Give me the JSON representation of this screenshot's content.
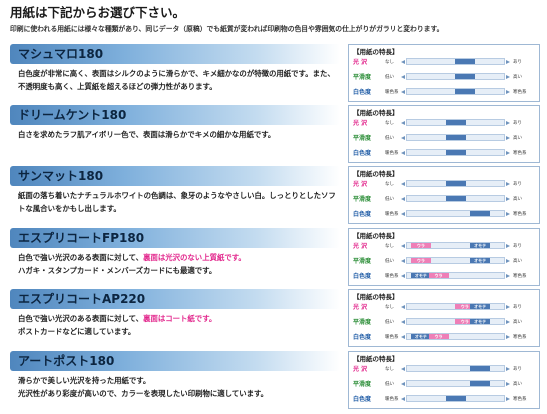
{
  "header": {
    "title": "用紙は下記からお選び下さい。",
    "subtitle": "印刷に使われる用紙には様々な種類があり、同じデータ（原稿）でも紙質が変われば印刷物の色目や雰囲気の仕上がりがガラリと変わります。"
  },
  "card_title": "【用紙の特長】",
  "row_labels": {
    "gloss": "光 沢",
    "smooth": "平滑度",
    "white": "白色度",
    "gloss_lo": "なし",
    "gloss_hi": "あり",
    "smooth_lo": "低い",
    "smooth_hi": "高い",
    "white_lo": "暖色系",
    "white_hi": "寒色系"
  },
  "colors": {
    "gloss": "#e2268c",
    "smooth": "#2e8f3a",
    "white": "#2560a8",
    "fill_blue": "#4a78b3",
    "fill_pink": "#ee7fb7"
  },
  "papers": [
    {
      "name": "マシュマロ180",
      "desc": [
        {
          "t": "白色度が非常に高く、表面はシルクのように滑らかで、キメ細かなのが特徴の用紙です。また、不透明度も高く、上質紙を超えるほどの弾力性があります。"
        }
      ],
      "gloss": {
        "pos": 0.62,
        "label": ""
      },
      "smooth": {
        "pos": 0.62,
        "label": ""
      },
      "white": {
        "pos": 0.62,
        "label": ""
      }
    },
    {
      "name": "ドリームケント180",
      "desc": [
        {
          "t": "白さを求めたラフ肌アイボリー色で、表面は滑らかでキメの細かな用紙です。"
        }
      ],
      "gloss": {
        "pos": 0.5,
        "label": ""
      },
      "smooth": {
        "pos": 0.5,
        "label": ""
      },
      "white": {
        "pos": 0.5,
        "label": ""
      }
    },
    {
      "name": "サンマット180",
      "desc": [
        {
          "t": "紙面の落ち着いたナチュラルホワイトの色調は、象牙のようなやさしい白。しっとりとしたソフトな風合いをかもし出します。"
        }
      ],
      "gloss": {
        "pos": 0.5,
        "label": ""
      },
      "smooth": {
        "pos": 0.5,
        "label": ""
      },
      "white": {
        "pos": 0.82,
        "label": ""
      }
    },
    {
      "name": "エスプリコートFP180",
      "desc": [
        {
          "t": "白色で強い光沢のある表面に対して、"
        },
        {
          "t": "裏面は光沢のない上質紙です。",
          "hl": true
        },
        {
          "t": "\nハガキ・スタンプカード・メンバーズカードにも最適です。"
        }
      ],
      "gloss": {
        "pos": 0.05,
        "label": "ウラ",
        "pink": true,
        "pos2": 0.82,
        "label2": "オモテ"
      },
      "smooth": {
        "pos": 0.05,
        "label": "ウラ",
        "pink": true,
        "pos2": 0.82,
        "label2": "オモテ"
      },
      "white": {
        "pos": 0.05,
        "label": "オモテ",
        "pos2": 0.28,
        "label2": "ウラ",
        "pink2": true
      }
    },
    {
      "name": "エスプリコートAP220",
      "desc": [
        {
          "t": "白色で強い光沢のある表面に対して、"
        },
        {
          "t": "裏面はコート紙です。",
          "hl": true
        },
        {
          "t": "\nポストカードなどに適しています。"
        }
      ],
      "gloss": {
        "pos": 0.62,
        "label": "ウラ",
        "pink": true,
        "pos2": 0.82,
        "label2": "オモテ"
      },
      "smooth": {
        "pos": 0.62,
        "label": "ウラ",
        "pink": true,
        "pos2": 0.82,
        "label2": "オモテ"
      },
      "white": {
        "pos": 0.05,
        "label": "オモテ",
        "pos2": 0.28,
        "label2": "ウラ",
        "pink2": true
      }
    },
    {
      "name": "アートポスト180",
      "desc": [
        {
          "t": "滑らかで美しい光沢を持った用紙です。\n光沢性があり彩度が高いので、カラーを表現したい印刷物に適しています。"
        }
      ],
      "gloss": {
        "pos": 0.82,
        "label": ""
      },
      "smooth": {
        "pos": 0.82,
        "label": ""
      },
      "white": {
        "pos": 0.5,
        "label": ""
      }
    }
  ]
}
